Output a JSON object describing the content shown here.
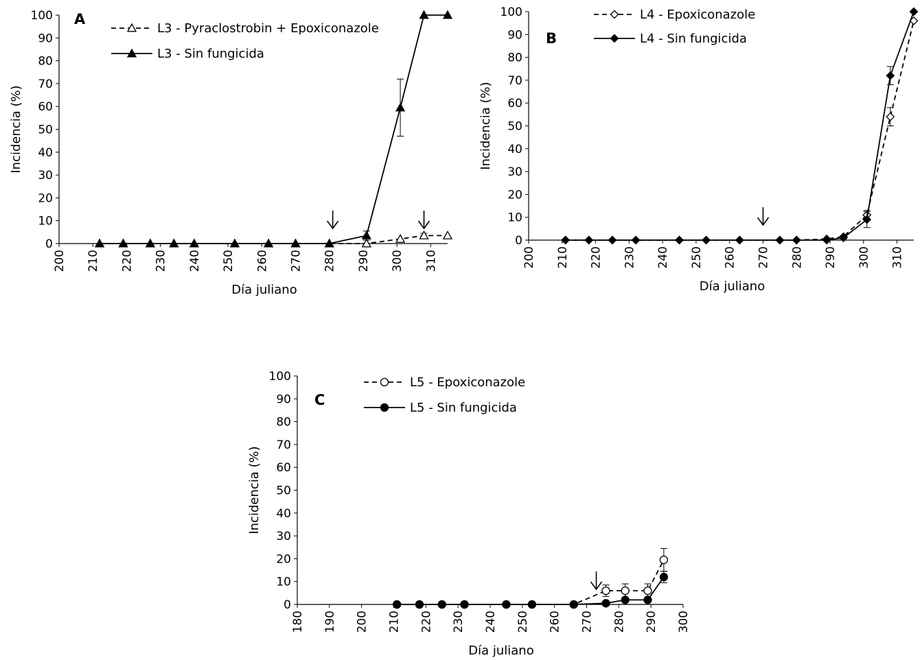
{
  "chart_data": [
    {
      "type": "line",
      "panel_label": "A",
      "xlabel": "Día juliano",
      "ylabel": "Incidencia (%)",
      "xlim": [
        200,
        315
      ],
      "ylim": [
        0,
        100
      ],
      "x_ticks": [
        200,
        210,
        220,
        230,
        240,
        250,
        260,
        270,
        280,
        290,
        300,
        310
      ],
      "y_ticks": [
        0,
        10,
        20,
        30,
        40,
        50,
        60,
        70,
        80,
        90,
        100
      ],
      "arrows_at_x": [
        281,
        308
      ],
      "series": [
        {
          "name": "L3 - Pyraclostrobin + Epoxiconazole",
          "marker": "triangle-open",
          "dashed": true,
          "x": [
            212,
            219,
            227,
            234,
            240,
            252,
            262,
            270,
            280,
            291,
            301,
            308,
            315
          ],
          "y": [
            0,
            0,
            0,
            0,
            0,
            0,
            0,
            0,
            0,
            0,
            2,
            3.5,
            3.5
          ],
          "err": [
            0,
            0,
            0,
            0,
            0,
            0,
            0,
            0,
            0,
            0,
            0,
            1,
            0
          ]
        },
        {
          "name": "L3 - Sin fungicida",
          "marker": "triangle-filled",
          "dashed": false,
          "x": [
            212,
            219,
            227,
            234,
            240,
            252,
            262,
            270,
            280,
            291,
            301,
            308,
            315
          ],
          "y": [
            0,
            0,
            0,
            0,
            0,
            0,
            0,
            0,
            0,
            3.5,
            59.5,
            100,
            100
          ],
          "err": [
            0,
            0,
            0,
            0,
            0,
            0,
            0,
            0,
            0,
            2,
            12.5,
            0,
            0
          ]
        }
      ]
    },
    {
      "type": "line",
      "panel_label": "B",
      "xlabel": "Día juliano",
      "ylabel": "Incidencia (%)",
      "xlim": [
        200,
        315
      ],
      "ylim": [
        0,
        100
      ],
      "x_ticks": [
        200,
        210,
        220,
        230,
        240,
        250,
        260,
        270,
        280,
        290,
        300,
        310
      ],
      "y_ticks": [
        0,
        10,
        20,
        30,
        40,
        50,
        60,
        70,
        80,
        90,
        100
      ],
      "arrows_at_x": [
        270
      ],
      "series": [
        {
          "name": "L4 - Epoxiconazole",
          "marker": "diamond-open",
          "dashed": true,
          "x": [
            211,
            218,
            225,
            232,
            245,
            253,
            263,
            275,
            280,
            289,
            294,
            301,
            308,
            315
          ],
          "y": [
            0,
            0,
            0,
            0,
            0,
            0,
            0,
            0,
            0,
            0.5,
            1.5,
            11,
            54,
            96
          ],
          "err": [
            0,
            0,
            0,
            0,
            0,
            0,
            0,
            0,
            0,
            0,
            0,
            2,
            4,
            0
          ]
        },
        {
          "name": "L4 - Sin fungicida",
          "marker": "diamond-filled",
          "dashed": false,
          "x": [
            211,
            218,
            225,
            232,
            245,
            253,
            263,
            275,
            280,
            289,
            294,
            301,
            308,
            315
          ],
          "y": [
            0,
            0,
            0,
            0,
            0,
            0,
            0,
            0,
            0,
            0,
            1,
            9,
            72,
            100
          ],
          "err": [
            0,
            0,
            0,
            0,
            0,
            0,
            0,
            0,
            0,
            0,
            0,
            3.5,
            4,
            0
          ]
        }
      ]
    },
    {
      "type": "line",
      "panel_label": "C",
      "xlabel": "Día juliano",
      "ylabel": "Incidencia (%)",
      "xlim": [
        180,
        300
      ],
      "ylim": [
        0,
        100
      ],
      "x_ticks": [
        180,
        190,
        200,
        210,
        220,
        230,
        240,
        250,
        260,
        270,
        280,
        290,
        300
      ],
      "y_ticks": [
        0,
        10,
        20,
        30,
        40,
        50,
        60,
        70,
        80,
        90,
        100
      ],
      "arrows_at_x": [
        273
      ],
      "series": [
        {
          "name": "L5 - Epoxiconazole",
          "marker": "circle-open",
          "dashed": true,
          "x": [
            211,
            218,
            225,
            232,
            245,
            253,
            266,
            276,
            282,
            289,
            294
          ],
          "y": [
            0,
            0,
            0,
            0,
            0,
            0,
            0,
            6,
            6,
            6,
            19.5
          ],
          "err": [
            0,
            0,
            0,
            0,
            0,
            0,
            0,
            2.5,
            3,
            3,
            5
          ]
        },
        {
          "name": "L5 - Sin fungicida",
          "marker": "circle-filled",
          "dashed": false,
          "x": [
            211,
            218,
            225,
            232,
            245,
            253,
            266,
            276,
            282,
            289,
            294
          ],
          "y": [
            0,
            0,
            0,
            0,
            0,
            0,
            0,
            0.5,
            2,
            2,
            12
          ],
          "err": [
            0,
            0,
            0,
            0,
            0,
            0,
            0,
            0,
            0,
            0,
            2.5
          ]
        }
      ]
    }
  ]
}
